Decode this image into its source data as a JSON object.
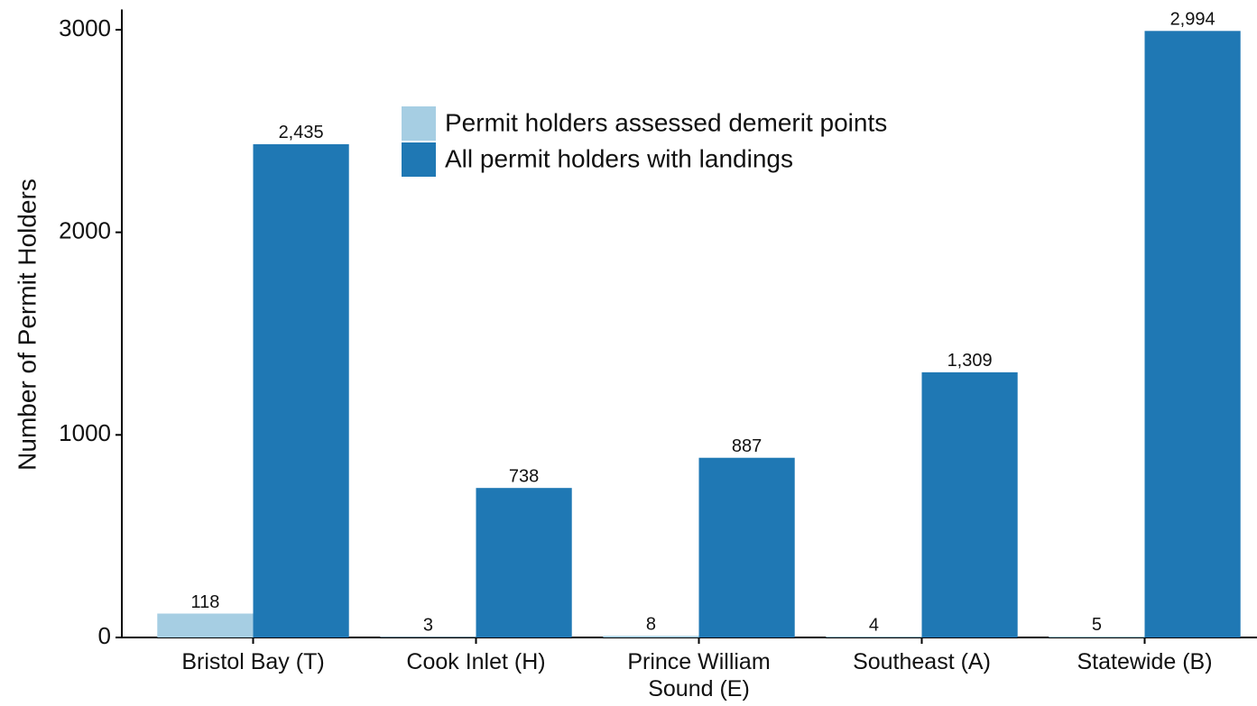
{
  "chart_data": {
    "type": "bar",
    "y_label": "Number of Permit Holders",
    "categories": [
      "Bristol Bay (T)",
      "Cook Inlet (H)",
      "Prince William Sound (E)",
      "Southeast (A)",
      "Statewide (B)"
    ],
    "series": [
      {
        "name": "Permit holders assessed demerit points",
        "color": "#a6cee3",
        "values": [
          118,
          3,
          8,
          4,
          5
        ]
      },
      {
        "name": "All permit holders with landings",
        "color": "#1f78b4",
        "values": [
          2435,
          738,
          887,
          1309,
          2994
        ],
        "value_labels": [
          "2,435",
          "738",
          "887",
          "1,309",
          "2,994"
        ]
      }
    ],
    "ylim": [
      0,
      3100
    ],
    "yticks": [
      0,
      1000,
      2000,
      3000
    ]
  }
}
